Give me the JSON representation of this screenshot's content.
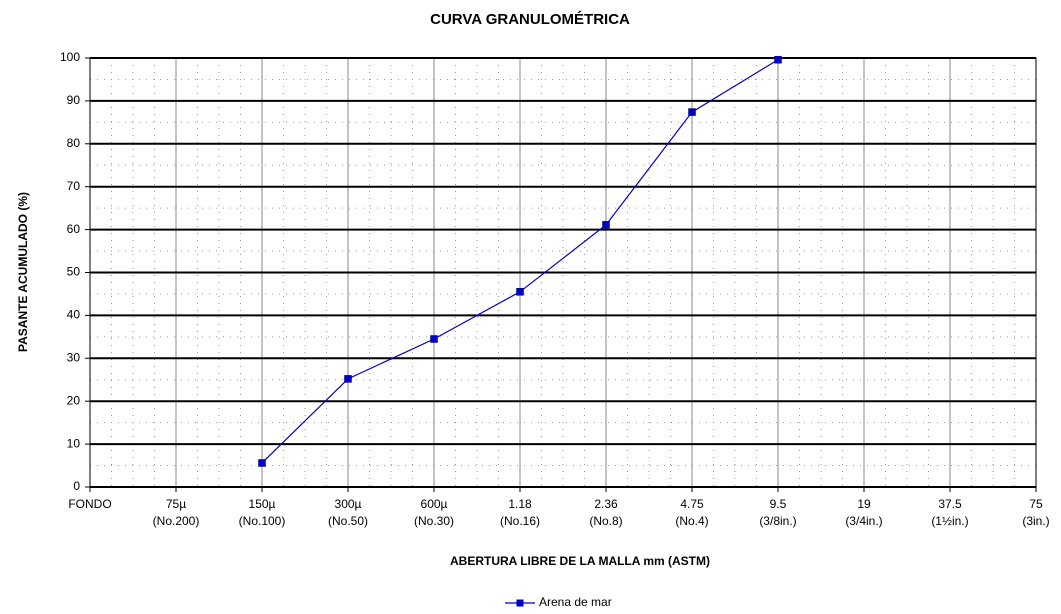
{
  "chart_data": {
    "type": "line",
    "title": "CURVA GRANULOMÉTRICA",
    "x_label": "ABERTURA LIBRE DE LA MALLA mm (ASTM)",
    "y_label": "PASANTE ACUMULADO (%)",
    "categories": [
      [
        "FONDO"
      ],
      [
        "75µ",
        "(No.200)"
      ],
      [
        "150µ",
        "(No.100)"
      ],
      [
        "300µ",
        "(No.50)"
      ],
      [
        "600µ",
        "(No.30)"
      ],
      [
        "1.18",
        "(No.16)"
      ],
      [
        "2.36",
        "(No.8)"
      ],
      [
        "4.75",
        "(No.4)"
      ],
      [
        "9.5",
        "(3/8in.)"
      ],
      [
        "19",
        "(3/4in.)"
      ],
      [
        "37.5",
        "(1½in.)"
      ],
      [
        "75",
        "(3in.)"
      ]
    ],
    "series": [
      {
        "name": "Arena de mar",
        "color": "#0000cc",
        "values": [
          null,
          null,
          5.6,
          25.2,
          34.5,
          45.5,
          61.1,
          87.4,
          99.6,
          null,
          null,
          null
        ]
      }
    ],
    "ylim": [
      0,
      100
    ],
    "yticks": [
      0,
      10,
      20,
      30,
      40,
      50,
      60,
      70,
      80,
      90,
      100
    ],
    "grid": true,
    "legend": "bottom"
  }
}
